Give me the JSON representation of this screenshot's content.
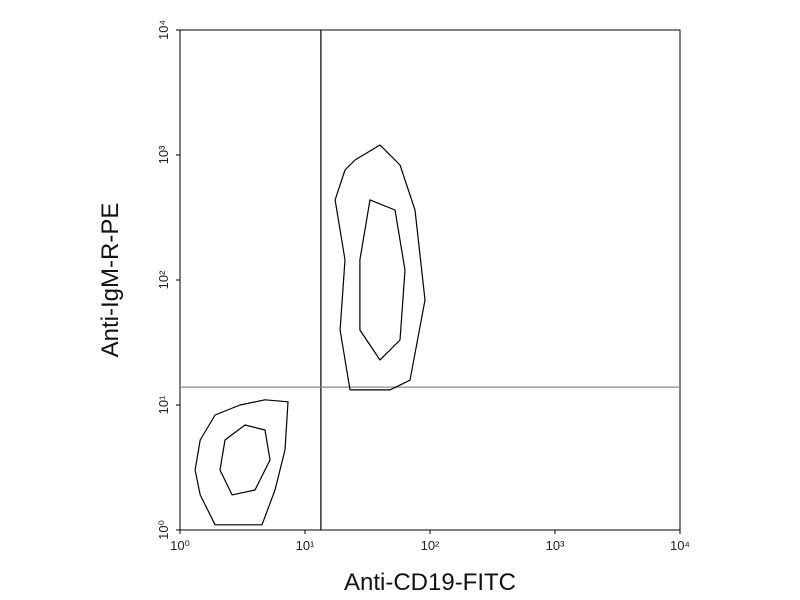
{
  "chart_data": {
    "type": "contour",
    "x_label": "Anti-CD19-FITC",
    "y_label": "Anti-IgM-R-PE",
    "x_scale": "log",
    "y_scale": "log",
    "xlim": [
      1,
      10000
    ],
    "ylim": [
      1,
      10000
    ],
    "xticks": [
      {
        "value": 1,
        "label": "10⁰"
      },
      {
        "value": 10,
        "label": "10¹"
      },
      {
        "value": 100,
        "label": "10²"
      },
      {
        "value": 1000,
        "label": "10³"
      },
      {
        "value": 10000,
        "label": "10⁴"
      }
    ],
    "yticks": [
      {
        "value": 1,
        "label": "10⁰"
      },
      {
        "value": 10,
        "label": "10¹"
      },
      {
        "value": 100,
        "label": "10²"
      },
      {
        "value": 1000,
        "label": "10³"
      },
      {
        "value": 10000,
        "label": "10⁴"
      }
    ],
    "quadrant_x": 13.4,
    "quadrant_y": 13.9,
    "series": [
      {
        "color": "#000000",
        "x": [
          1.45,
          1.91,
          3.02,
          4.79,
          7.31,
          6.92,
          5.75,
          4.53,
          1.91,
          1.45,
          1.32
        ],
        "y": [
          5.25,
          8.32,
          10,
          11.0,
          10.6,
          4.37,
          2.09,
          1.1,
          1.1,
          1.91,
          3.02
        ]
      },
      {
        "color": "#000000",
        "x": [
          2.29,
          3.31,
          4.79,
          5.25,
          3.98,
          2.61,
          2.09
        ],
        "y": [
          5.25,
          6.92,
          6.31,
          3.63,
          2.09,
          1.91,
          3.02
        ]
      },
      {
        "color": "#000000",
        "x": [
          25.1,
          39.8,
          57.5,
          75.9,
          91.2,
          69.2,
          47.9,
          22.9,
          19.1,
          20.9,
          17.4,
          20.9
        ],
        "y": [
          912,
          1202,
          832,
          363,
          69.2,
          15.8,
          13.2,
          13.2,
          39.8,
          145,
          437,
          759
        ]
      },
      {
        "color": "#000000",
        "x": [
          33.1,
          52.5,
          63.1,
          57.5,
          39.8,
          27.5,
          27.5
        ],
        "y": [
          437,
          363,
          120,
          33.1,
          22.9,
          39.8,
          145
        ]
      }
    ]
  }
}
